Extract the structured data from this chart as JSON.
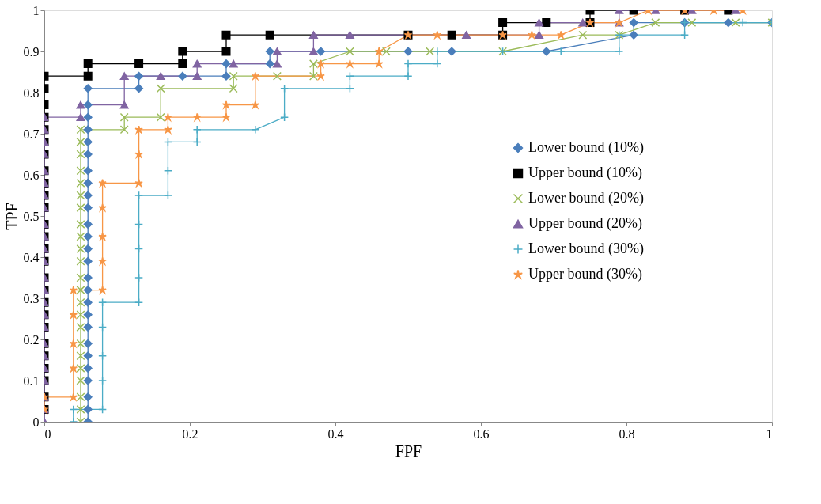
{
  "chart_data": {
    "type": "line",
    "xlabel": "FPF",
    "ylabel": "TPF",
    "xlim": [
      0,
      1
    ],
    "xticks": [
      0,
      0.2,
      0.4,
      0.6,
      0.8,
      1
    ],
    "ylim": [
      0,
      1
    ],
    "yticks": [
      0,
      0.1,
      0.2,
      0.3,
      0.4,
      0.5,
      0.6,
      0.7,
      0.8,
      0.9,
      1
    ],
    "grid": false,
    "legend": "right",
    "series": [
      {
        "name": "Lower bound (10%)",
        "color": "#4a7ebb",
        "marker": "diamond",
        "x": [
          0.06,
          0.06,
          0.06,
          0.06,
          0.06,
          0.06,
          0.06,
          0.06,
          0.06,
          0.06,
          0.06,
          0.06,
          0.06,
          0.06,
          0.06,
          0.06,
          0.06,
          0.06,
          0.06,
          0.06,
          0.06,
          0.06,
          0.06,
          0.06,
          0.06,
          0.06,
          0.13,
          0.13,
          0.19,
          0.25,
          0.25,
          0.31,
          0.31,
          0.38,
          0.5,
          0.56,
          0.69,
          0.81,
          0.81,
          0.88,
          0.94,
          1
        ],
        "values": [
          0,
          0.03,
          0.06,
          0.1,
          0.13,
          0.16,
          0.19,
          0.23,
          0.26,
          0.29,
          0.32,
          0.35,
          0.39,
          0.42,
          0.45,
          0.48,
          0.52,
          0.55,
          0.58,
          0.61,
          0.65,
          0.68,
          0.71,
          0.74,
          0.77,
          0.81,
          0.81,
          0.84,
          0.84,
          0.84,
          0.87,
          0.87,
          0.9,
          0.9,
          0.9,
          0.9,
          0.9,
          0.94,
          0.97,
          0.97,
          0.97,
          0.97
        ]
      },
      {
        "name": "Upper bound (10%)",
        "color": "#000000",
        "marker": "square",
        "x": [
          0,
          0,
          0,
          0,
          0,
          0,
          0,
          0,
          0,
          0,
          0,
          0,
          0,
          0,
          0,
          0,
          0,
          0,
          0,
          0,
          0,
          0,
          0,
          0,
          0,
          0,
          0.06,
          0.06,
          0.13,
          0.19,
          0.19,
          0.25,
          0.25,
          0.31,
          0.5,
          0.56,
          0.63,
          0.63,
          0.69,
          0.75,
          0.75,
          0.81,
          0.88,
          0.94
        ],
        "values": [
          0.03,
          0.06,
          0.1,
          0.13,
          0.16,
          0.19,
          0.23,
          0.26,
          0.29,
          0.32,
          0.35,
          0.39,
          0.42,
          0.45,
          0.48,
          0.52,
          0.55,
          0.58,
          0.61,
          0.65,
          0.68,
          0.71,
          0.74,
          0.77,
          0.81,
          0.84,
          0.84,
          0.87,
          0.87,
          0.87,
          0.9,
          0.9,
          0.94,
          0.94,
          0.94,
          0.94,
          0.94,
          0.97,
          0.97,
          0.97,
          1,
          1,
          1,
          1
        ]
      },
      {
        "name": "Lower bound (20%)",
        "color": "#9bbb59",
        "marker": "cross",
        "x": [
          0.05,
          0.05,
          0.05,
          0.05,
          0.05,
          0.05,
          0.05,
          0.05,
          0.05,
          0.05,
          0.05,
          0.05,
          0.05,
          0.05,
          0.05,
          0.05,
          0.05,
          0.05,
          0.05,
          0.05,
          0.05,
          0.05,
          0.05,
          0.11,
          0.11,
          0.16,
          0.16,
          0.26,
          0.26,
          0.32,
          0.37,
          0.37,
          0.42,
          0.47,
          0.53,
          0.63,
          0.74,
          0.79,
          0.84,
          0.89,
          0.95,
          1
        ],
        "values": [
          0,
          0.03,
          0.06,
          0.1,
          0.13,
          0.16,
          0.19,
          0.23,
          0.26,
          0.29,
          0.32,
          0.35,
          0.39,
          0.42,
          0.45,
          0.48,
          0.52,
          0.55,
          0.58,
          0.61,
          0.65,
          0.68,
          0.71,
          0.71,
          0.74,
          0.74,
          0.81,
          0.81,
          0.84,
          0.84,
          0.84,
          0.87,
          0.9,
          0.9,
          0.9,
          0.9,
          0.94,
          0.94,
          0.97,
          0.97,
          0.97,
          0.97
        ]
      },
      {
        "name": "Upper bound (20%)",
        "color": "#8064a2",
        "marker": "triangle",
        "x": [
          0,
          0,
          0,
          0,
          0,
          0,
          0,
          0,
          0,
          0,
          0,
          0,
          0,
          0,
          0,
          0,
          0,
          0,
          0,
          0,
          0,
          0,
          0,
          0,
          0.05,
          0.05,
          0.11,
          0.11,
          0.16,
          0.21,
          0.21,
          0.26,
          0.32,
          0.32,
          0.37,
          0.37,
          0.42,
          0.58,
          0.68,
          0.68,
          0.74,
          0.79,
          0.79,
          0.84,
          0.89,
          0.95
        ],
        "values": [
          0,
          0.03,
          0.06,
          0.1,
          0.13,
          0.16,
          0.19,
          0.23,
          0.26,
          0.29,
          0.32,
          0.35,
          0.39,
          0.42,
          0.45,
          0.48,
          0.52,
          0.55,
          0.58,
          0.61,
          0.65,
          0.68,
          0.71,
          0.74,
          0.74,
          0.77,
          0.77,
          0.84,
          0.84,
          0.84,
          0.87,
          0.87,
          0.87,
          0.9,
          0.9,
          0.94,
          0.94,
          0.94,
          0.94,
          0.97,
          0.97,
          0.97,
          1,
          1,
          1,
          1
        ]
      },
      {
        "name": "Lower bound (30%)",
        "color": "#4bacc6",
        "marker": "plus",
        "x": [
          0.04,
          0.04,
          0.08,
          0.08,
          0.08,
          0.08,
          0.08,
          0.13,
          0.13,
          0.13,
          0.13,
          0.13,
          0.17,
          0.17,
          0.17,
          0.21,
          0.21,
          0.29,
          0.33,
          0.33,
          0.42,
          0.42,
          0.5,
          0.5,
          0.54,
          0.54,
          0.63,
          0.71,
          0.79,
          0.79,
          0.88,
          0.88,
          0.96,
          1
        ],
        "values": [
          0,
          0.03,
          0.03,
          0.1,
          0.16,
          0.23,
          0.29,
          0.29,
          0.35,
          0.42,
          0.48,
          0.55,
          0.55,
          0.61,
          0.68,
          0.68,
          0.71,
          0.71,
          0.74,
          0.81,
          0.81,
          0.84,
          0.84,
          0.87,
          0.87,
          0.9,
          0.9,
          0.9,
          0.9,
          0.94,
          0.94,
          0.97,
          0.97,
          0.97
        ]
      },
      {
        "name": "Upper bound (30%)",
        "color": "#f79646",
        "marker": "star",
        "x": [
          0,
          0,
          0.04,
          0.04,
          0.04,
          0.04,
          0.04,
          0.08,
          0.08,
          0.08,
          0.08,
          0.08,
          0.13,
          0.13,
          0.13,
          0.17,
          0.17,
          0.21,
          0.25,
          0.25,
          0.29,
          0.29,
          0.38,
          0.38,
          0.42,
          0.46,
          0.46,
          0.5,
          0.54,
          0.63,
          0.67,
          0.71,
          0.75,
          0.79,
          0.83,
          0.88,
          0.92,
          0.96
        ],
        "values": [
          0.03,
          0.06,
          0.06,
          0.13,
          0.19,
          0.26,
          0.32,
          0.32,
          0.39,
          0.45,
          0.52,
          0.58,
          0.58,
          0.65,
          0.71,
          0.71,
          0.74,
          0.74,
          0.74,
          0.77,
          0.77,
          0.84,
          0.84,
          0.87,
          0.87,
          0.87,
          0.9,
          0.94,
          0.94,
          0.94,
          0.94,
          0.94,
          0.97,
          0.97,
          1,
          1,
          1,
          1
        ]
      }
    ]
  }
}
